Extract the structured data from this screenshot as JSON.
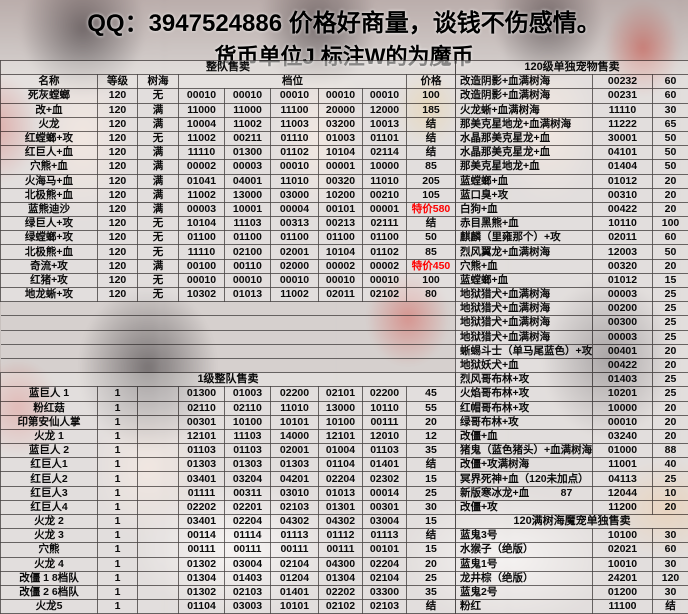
{
  "header": {
    "line1": "QQ：3947524886 价格好商量，谈钱不伤感情。",
    "line2": "货币单位J 标注W的为魔币"
  },
  "colors": {
    "special_price_color": "#ff0000",
    "text_color": "#000000"
  },
  "left_table": {
    "section1_title": "整队售卖",
    "columns": [
      "名称",
      "等级",
      "树海",
      "档位",
      "价格"
    ],
    "rows": [
      [
        "死灰螳螂",
        "120",
        "无",
        "00010",
        "00010",
        "00010",
        "00010",
        "00010",
        "100"
      ],
      [
        "改+血",
        "120",
        "满",
        "11000",
        "11000",
        "11100",
        "20000",
        "12000",
        "185"
      ],
      [
        "火龙",
        "120",
        "满",
        "10004",
        "11002",
        "11003",
        "03200",
        "10013",
        "结"
      ],
      [
        "红螳螂+攻",
        "120",
        "无",
        "11002",
        "00211",
        "01110",
        "01003",
        "01101",
        "结"
      ],
      [
        "红巨人+血",
        "120",
        "满",
        "11110",
        "01300",
        "01102",
        "10104",
        "02114",
        "结"
      ],
      [
        "穴熊+血",
        "120",
        "满",
        "00002",
        "00003",
        "00010",
        "00001",
        "10000",
        "85"
      ],
      [
        "火海马+血",
        "120",
        "满",
        "01041",
        "04001",
        "11010",
        "00320",
        "11010",
        "205"
      ],
      [
        "北极熊+血",
        "120",
        "满",
        "11002",
        "13000",
        "03000",
        "10200",
        "00210",
        "105"
      ],
      [
        "蓝熊迪沙",
        "120",
        "满",
        "00003",
        "10001",
        "00004",
        "00101",
        "00001",
        "特价580"
      ],
      [
        "绿巨人+攻",
        "120",
        "无",
        "10104",
        "11103",
        "00313",
        "00213",
        "02111",
        "结"
      ],
      [
        "绿螳螂+攻",
        "120",
        "无",
        "01100",
        "01100",
        "01100",
        "01100",
        "01100",
        "50"
      ],
      [
        "北极熊+血",
        "120",
        "无",
        "11110",
        "02100",
        "02001",
        "10104",
        "01102",
        "85"
      ],
      [
        "奇流+攻",
        "120",
        "满",
        "00100",
        "00110",
        "02000",
        "00002",
        "00002",
        "特价450"
      ],
      [
        "红猪+攻",
        "120",
        "无",
        "00010",
        "00010",
        "00010",
        "00010",
        "00010",
        "100"
      ],
      [
        "地龙蜥+攻",
        "120",
        "无",
        "10302",
        "01013",
        "11002",
        "02011",
        "02102",
        "80"
      ]
    ],
    "empty_row_count": 5,
    "section2_title": "1级整队售卖",
    "rows2": [
      [
        "蓝巨人 1",
        "1",
        "",
        "01300",
        "01003",
        "02200",
        "02101",
        "02200",
        "45"
      ],
      [
        "粉红菇",
        "1",
        "",
        "02110",
        "02110",
        "11010",
        "13000",
        "10110",
        "55"
      ],
      [
        "印第安仙人掌",
        "1",
        "",
        "00301",
        "10100",
        "10101",
        "10100",
        "00111",
        "20"
      ],
      [
        "火龙 1",
        "1",
        "",
        "12101",
        "11103",
        "14000",
        "12101",
        "12010",
        "12"
      ],
      [
        "蓝巨人 2",
        "1",
        "",
        "01103",
        "01103",
        "02001",
        "01004",
        "01103",
        "35"
      ],
      [
        "红巨人1",
        "1",
        "",
        "01303",
        "01303",
        "01303",
        "01104",
        "01401",
        "结"
      ],
      [
        "红巨人2",
        "1",
        "",
        "03401",
        "03204",
        "04201",
        "02204",
        "02302",
        "15"
      ],
      [
        "红巨人3",
        "1",
        "",
        "01111",
        "00311",
        "03010",
        "01013",
        "00014",
        "25"
      ],
      [
        "红巨人4",
        "1",
        "",
        "02202",
        "02201",
        "02103",
        "01301",
        "00301",
        "30"
      ],
      [
        "火龙 2",
        "1",
        "",
        "03401",
        "02204",
        "04302",
        "04302",
        "03004",
        "15"
      ],
      [
        "火龙 3",
        "1",
        "",
        "00114",
        "01114",
        "01113",
        "01112",
        "01113",
        "结"
      ],
      [
        "穴熊",
        "1",
        "",
        "00111",
        "00111",
        "00111",
        "00111",
        "00101",
        "15"
      ],
      [
        "火龙 4",
        "1",
        "",
        "01302",
        "03004",
        "02104",
        "04300",
        "02204",
        "20"
      ],
      [
        "改僵 1 8档队",
        "1",
        "",
        "01304",
        "01403",
        "01204",
        "01304",
        "02104",
        "25"
      ],
      [
        "改僵 2 6档队",
        "1",
        "",
        "01302",
        "02103",
        "01401",
        "02202",
        "03300",
        "35"
      ],
      [
        "火龙5",
        "1",
        "",
        "01104",
        "03003",
        "10101",
        "02102",
        "02103",
        "结"
      ]
    ]
  },
  "right_table": {
    "section1_title": "120级单独宠物售卖",
    "rows": [
      [
        "改造阴影+血满树海",
        "00232",
        "60"
      ],
      [
        "改造阴影+血满树海",
        "00231",
        "60"
      ],
      [
        "火龙蜥+血满树海",
        "11110",
        "30"
      ],
      [
        "那美克星地龙+血满树海",
        "11222",
        "65"
      ],
      [
        "水晶那美克星龙+血",
        "30001",
        "50"
      ],
      [
        "水晶那美克星龙+血",
        "04101",
        "50"
      ],
      [
        "那美克星地龙+血",
        "01404",
        "50"
      ],
      [
        "蓝螳螂+血",
        "01012",
        "20"
      ],
      [
        "蓝口臭+攻",
        "00310",
        "20"
      ],
      [
        "白狗+血",
        "00422",
        "20"
      ],
      [
        "赤目黑熊+血",
        "10110",
        "100"
      ],
      [
        "麒麟（里雍那个）+攻",
        "02011",
        "60"
      ],
      [
        "烈风翼龙+血满树海",
        "12003",
        "50"
      ],
      [
        "穴熊+血",
        "00320",
        "20"
      ],
      [
        "蓝螳螂+血",
        "01012",
        "15"
      ],
      [
        "地狱猎犬+血满树海",
        "00003",
        "25"
      ],
      [
        "地狱猎犬+血满树海",
        "00200",
        "25"
      ],
      [
        "地狱猎犬+血满树海",
        "00300",
        "25"
      ],
      [
        "地狱猎犬+血满树海",
        "00003",
        "25"
      ],
      [
        "蜥蜴斗士（单马尾蓝色）+攻",
        "00401",
        "20"
      ],
      [
        "地狱妖犬+血",
        "00422",
        "20"
      ],
      [
        "烈风哥布林+攻",
        "01403",
        "25"
      ],
      [
        "火焰哥布林+攻",
        "10201",
        "25"
      ],
      [
        "红帽哥布林+攻",
        "10000",
        "20"
      ],
      [
        "绿哥布林+攻",
        "00010",
        "20"
      ],
      [
        "改僵+血",
        "03240",
        "20"
      ],
      [
        "猪鬼（蓝色猪头）+血满树海",
        "01000",
        "88"
      ],
      [
        "改僵+攻满树海",
        "11001",
        "40"
      ],
      [
        "冥界死神+血（120未加点）",
        "04113",
        "25"
      ],
      [
        "新版寒冰龙+血　　　87",
        "12044",
        "10"
      ],
      [
        "改僵+攻",
        "11200",
        "20"
      ]
    ],
    "section2_title": "120满树海魔宠单独售卖",
    "rows2": [
      [
        "蓝鬼3号",
        "10100",
        "30"
      ],
      [
        "水猴子（绝版）",
        "02021",
        "60"
      ],
      [
        "蓝鬼1号",
        "10010",
        "30"
      ],
      [
        "龙井棕（绝版）",
        "24201",
        "120"
      ],
      [
        "蓝鬼2号",
        "01200",
        "30"
      ],
      [
        "粉红",
        "11100",
        "结"
      ]
    ]
  }
}
